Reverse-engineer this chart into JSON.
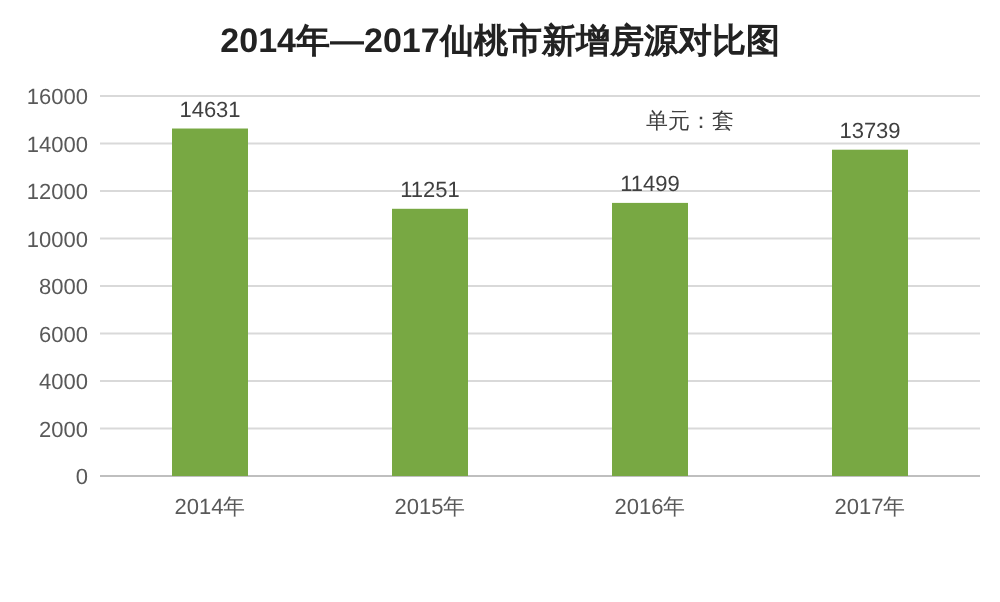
{
  "chart_data": {
    "type": "bar",
    "title": "2014年—2017仙桃市新增房源对比图",
    "categories": [
      "2014年",
      "2015年",
      "2016年",
      "2017年"
    ],
    "values": [
      14631,
      11251,
      11499,
      13739
    ],
    "color": "#78a843",
    "ylim": [
      0,
      16000
    ],
    "yticks": [
      0,
      2000,
      4000,
      6000,
      8000,
      10000,
      12000,
      14000,
      16000
    ],
    "grid": "y",
    "data_labels": true,
    "annotations": [
      "单元：套"
    ]
  }
}
